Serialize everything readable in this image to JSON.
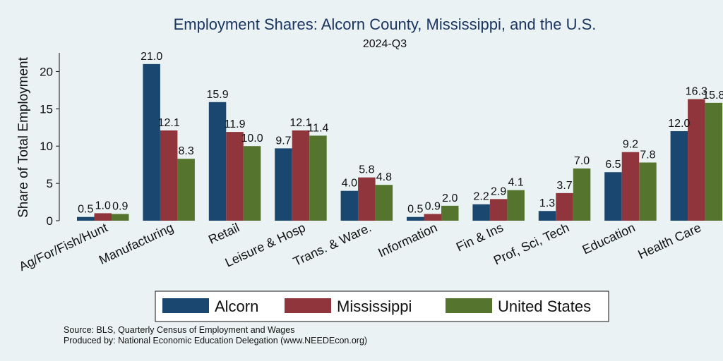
{
  "chart_data": {
    "type": "bar",
    "title": "Employment Shares: Alcorn County, Mississippi, and the U.S.",
    "subtitle": "2024-Q3",
    "ylabel": "Share of Total Employment",
    "xlabel": "",
    "ylim": [
      0,
      22.5
    ],
    "yticks": [
      "0",
      "5",
      "10",
      "15",
      "20"
    ],
    "grid": false,
    "legend_position": "bottom",
    "categories": [
      "Ag/For/Fish/Hunt",
      "Manufacturing",
      "Retail",
      "Leisure & Hosp",
      "Trans. & Ware.",
      "Information",
      "Fin & Ins",
      "Prof, Sci, Tech",
      "Education",
      "Health Care"
    ],
    "series": [
      {
        "name": "Alcorn",
        "color": "#1a476f",
        "values": [
          0.5,
          21.0,
          15.9,
          9.7,
          4.0,
          0.5,
          2.2,
          1.3,
          6.5,
          12.0
        ]
      },
      {
        "name": "Mississippi",
        "color": "#90353b",
        "values": [
          1.0,
          12.1,
          11.9,
          12.1,
          5.8,
          0.9,
          2.9,
          3.7,
          9.2,
          16.3
        ]
      },
      {
        "name": "United States",
        "color": "#55752f",
        "values": [
          0.9,
          8.3,
          10.0,
          11.4,
          4.8,
          2.0,
          4.1,
          7.0,
          7.8,
          15.8
        ]
      }
    ]
  },
  "source_lines": [
    "Source: BLS, Quarterly Census of Employment and Wages",
    "Produced by: National Economic Education Delegation (www.NEEDEcon.org)"
  ]
}
